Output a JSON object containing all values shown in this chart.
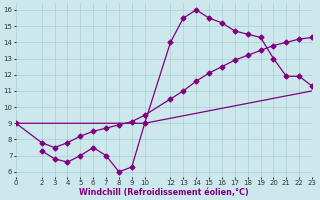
{
  "background_color": "#cde8ec",
  "grid_color": "#aecfd4",
  "line_color": "#800080",
  "markersize": 2.5,
  "linewidth": 0.9,
  "xlim": [
    0,
    23
  ],
  "ylim": [
    5.7,
    16.4
  ],
  "xticks": [
    0,
    2,
    3,
    4,
    5,
    6,
    7,
    8,
    9,
    10,
    12,
    13,
    14,
    15,
    16,
    17,
    18,
    19,
    20,
    21,
    22,
    23
  ],
  "yticks": [
    6,
    7,
    8,
    9,
    10,
    11,
    12,
    13,
    14,
    15,
    16
  ],
  "xlabel": "Windchill (Refroidissement éolien,°C)",
  "xlabel_fontsize": 5.8,
  "tick_fontsize": 5.0,
  "line1_x": [
    0,
    10,
    23
  ],
  "line1_y": [
    9.0,
    9.0,
    11.0
  ],
  "line2_x": [
    2,
    3,
    4,
    5,
    6,
    7,
    8,
    9,
    10,
    12,
    13,
    14,
    15,
    16,
    17,
    18,
    19,
    20,
    21,
    22,
    23
  ],
  "line2_y": [
    7.3,
    6.8,
    6.6,
    7.0,
    7.5,
    7.0,
    6.0,
    6.3,
    9.0,
    14.0,
    15.5,
    16.0,
    15.5,
    15.2,
    14.7,
    14.5,
    14.3,
    13.0,
    11.9,
    11.9,
    11.3
  ],
  "line3_x": [
    0,
    2,
    3,
    4,
    5,
    6,
    7,
    8,
    9,
    10,
    12,
    13,
    14,
    15,
    16,
    17,
    18,
    19,
    20,
    21,
    22,
    23
  ],
  "line3_y": [
    9.0,
    7.8,
    7.5,
    7.8,
    8.2,
    8.5,
    8.7,
    8.9,
    9.1,
    9.5,
    10.5,
    11.0,
    11.6,
    12.1,
    12.5,
    12.9,
    13.2,
    13.5,
    13.8,
    14.0,
    14.2,
    14.3
  ]
}
